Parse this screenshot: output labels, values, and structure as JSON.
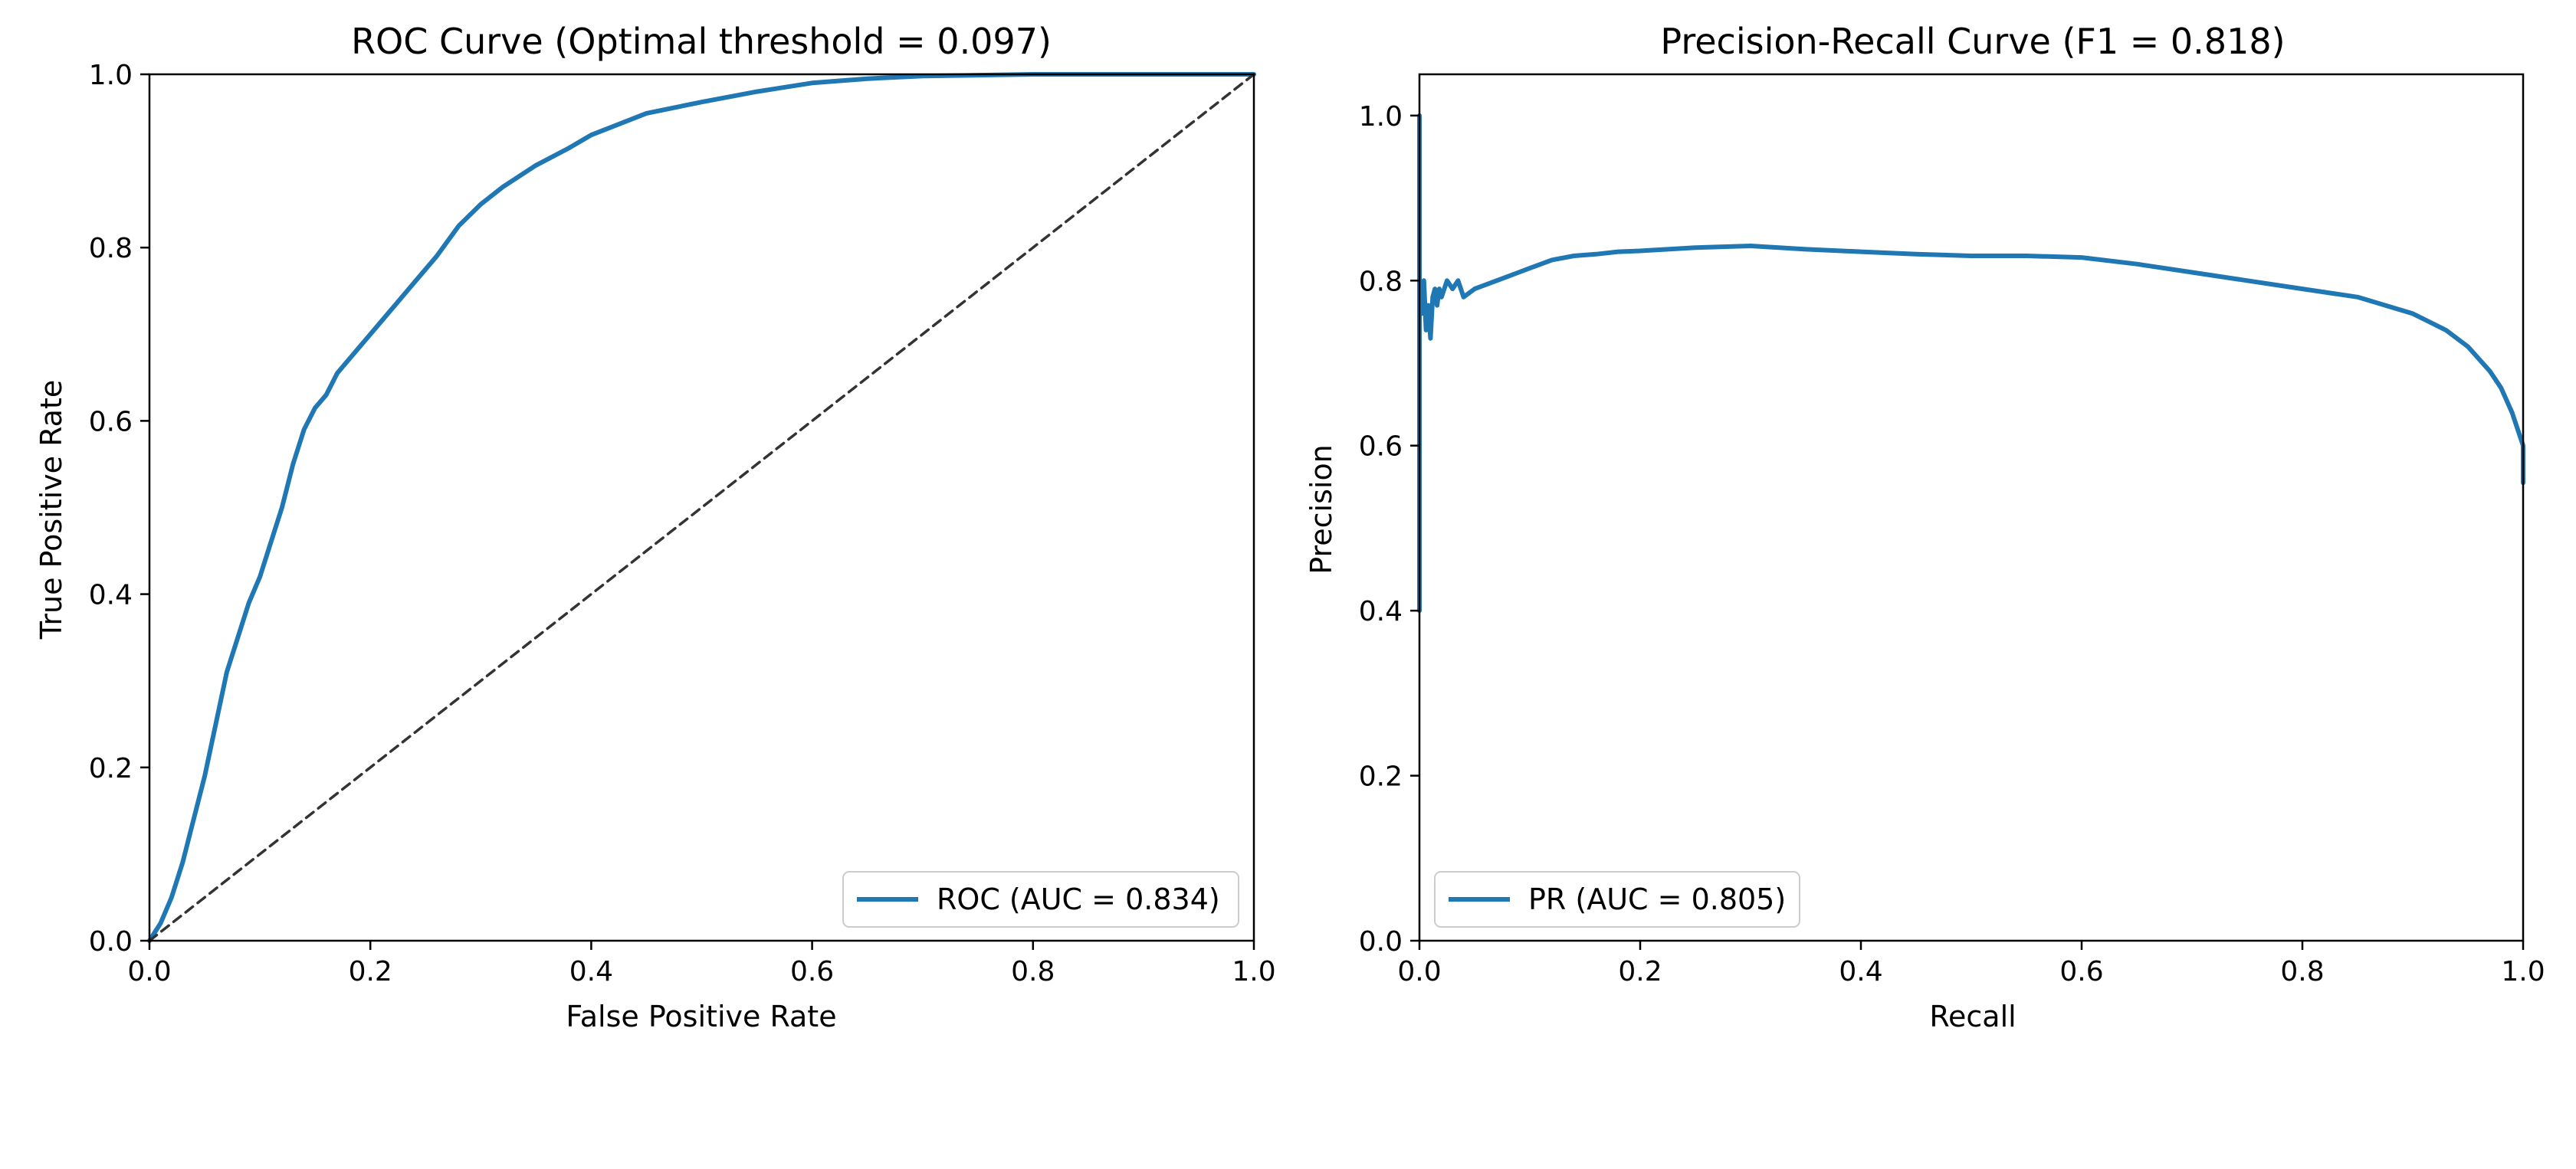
{
  "chart_data": [
    {
      "type": "line",
      "title": "ROC Curve (Optimal threshold = 0.097)",
      "xlabel": "False Positive Rate",
      "ylabel": "True Positive Rate",
      "xlim": [
        0.0,
        1.0
      ],
      "ylim": [
        0.0,
        1.0
      ],
      "xticks": [
        "0.0",
        "0.2",
        "0.4",
        "0.6",
        "0.8",
        "1.0"
      ],
      "yticks": [
        "0.0",
        "0.2",
        "0.4",
        "0.6",
        "0.8",
        "1.0"
      ],
      "grid": false,
      "legend_position": "lower-right",
      "series": [
        {
          "name": "ROC (AUC = 0.834)",
          "color": "#1f77b4",
          "style": "solid",
          "x": [
            0.0,
            0.01,
            0.02,
            0.03,
            0.04,
            0.05,
            0.06,
            0.07,
            0.08,
            0.09,
            0.1,
            0.11,
            0.12,
            0.13,
            0.14,
            0.15,
            0.16,
            0.17,
            0.18,
            0.2,
            0.22,
            0.24,
            0.26,
            0.28,
            0.3,
            0.32,
            0.35,
            0.38,
            0.4,
            0.42,
            0.45,
            0.5,
            0.55,
            0.6,
            0.65,
            0.7,
            0.8,
            0.9,
            1.0
          ],
          "y": [
            0.0,
            0.02,
            0.05,
            0.09,
            0.14,
            0.19,
            0.25,
            0.31,
            0.35,
            0.39,
            0.42,
            0.46,
            0.5,
            0.55,
            0.59,
            0.615,
            0.63,
            0.655,
            0.67,
            0.7,
            0.73,
            0.76,
            0.79,
            0.825,
            0.85,
            0.87,
            0.895,
            0.915,
            0.93,
            0.94,
            0.955,
            0.968,
            0.98,
            0.99,
            0.995,
            0.998,
            1.0,
            1.0,
            1.0
          ]
        },
        {
          "name": "",
          "color": "#333333",
          "style": "dashed",
          "x": [
            0.0,
            1.0
          ],
          "y": [
            0.0,
            1.0
          ]
        }
      ],
      "legend": [
        {
          "label": "ROC (AUC = 0.834)",
          "color": "#1f77b4"
        }
      ]
    },
    {
      "type": "line",
      "title": "Precision-Recall Curve (F1 = 0.818)",
      "xlabel": "Recall",
      "ylabel": "Precision",
      "xlim": [
        0.0,
        1.0
      ],
      "ylim": [
        0.0,
        1.05
      ],
      "xticks": [
        "0.0",
        "0.2",
        "0.4",
        "0.6",
        "0.8",
        "1.0"
      ],
      "yticks": [
        "0.0",
        "0.2",
        "0.4",
        "0.6",
        "0.8",
        "1.0"
      ],
      "grid": false,
      "legend_position": "lower-left",
      "series": [
        {
          "name": "PR (AUC = 0.805)",
          "color": "#1f77b4",
          "style": "solid",
          "x": [
            0.0,
            0.0,
            0.0,
            0.002,
            0.004,
            0.006,
            0.008,
            0.01,
            0.012,
            0.014,
            0.016,
            0.018,
            0.02,
            0.025,
            0.03,
            0.035,
            0.04,
            0.05,
            0.06,
            0.07,
            0.08,
            0.09,
            0.1,
            0.12,
            0.14,
            0.16,
            0.18,
            0.2,
            0.25,
            0.3,
            0.35,
            0.4,
            0.45,
            0.5,
            0.55,
            0.6,
            0.65,
            0.7,
            0.75,
            0.8,
            0.85,
            0.9,
            0.93,
            0.95,
            0.97,
            0.98,
            0.99,
            0.995,
            1.0,
            1.0
          ],
          "y": [
            0.4,
            1.0,
            0.8,
            0.76,
            0.8,
            0.74,
            0.77,
            0.73,
            0.78,
            0.79,
            0.77,
            0.79,
            0.78,
            0.8,
            0.79,
            0.8,
            0.78,
            0.79,
            0.795,
            0.8,
            0.805,
            0.81,
            0.815,
            0.825,
            0.83,
            0.832,
            0.835,
            0.836,
            0.84,
            0.842,
            0.838,
            0.835,
            0.832,
            0.83,
            0.83,
            0.828,
            0.82,
            0.81,
            0.8,
            0.79,
            0.78,
            0.76,
            0.74,
            0.72,
            0.69,
            0.67,
            0.64,
            0.62,
            0.6,
            0.555
          ]
        }
      ],
      "legend": [
        {
          "label": "PR (AUC = 0.805)",
          "color": "#1f77b4"
        }
      ]
    }
  ]
}
